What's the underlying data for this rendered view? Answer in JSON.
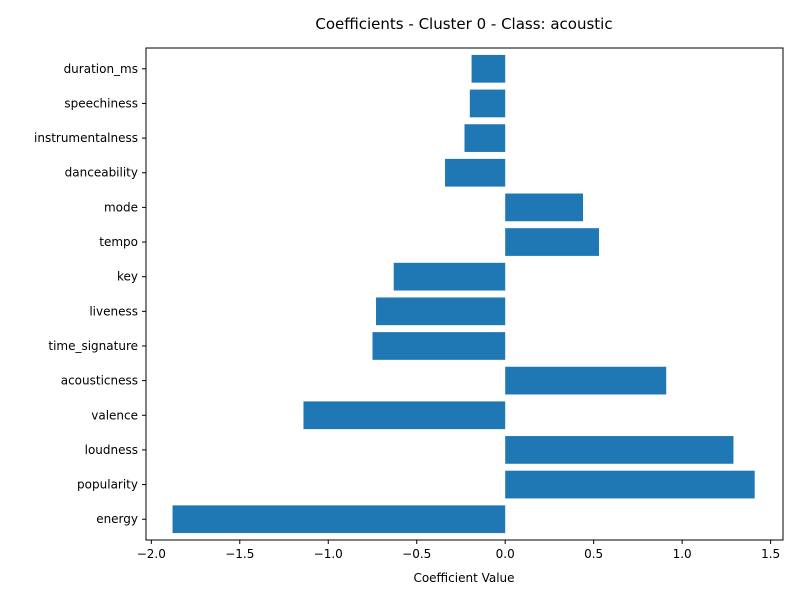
{
  "chart_data": {
    "type": "bar",
    "orientation": "horizontal",
    "title": "Coefficients - Cluster 0 - Class: acoustic",
    "xlabel": "Coefficient Value",
    "ylabel": "",
    "categories": [
      "energy",
      "popularity",
      "loudness",
      "valence",
      "acousticness",
      "time_signature",
      "liveness",
      "key",
      "tempo",
      "mode",
      "danceability",
      "instrumentalness",
      "speechiness",
      "duration_ms"
    ],
    "values": [
      -1.88,
      1.41,
      1.29,
      -1.14,
      0.91,
      -0.75,
      -0.73,
      -0.63,
      0.53,
      0.44,
      -0.34,
      -0.23,
      -0.2,
      -0.19
    ],
    "xlim": [
      -2.03,
      1.57
    ],
    "xticks": [
      -2.0,
      -1.5,
      -1.0,
      -0.5,
      0.0,
      0.5,
      1.0,
      1.5
    ],
    "xtick_labels": [
      "−2.0",
      "−1.5",
      "−1.0",
      "−0.5",
      "0.0",
      "0.5",
      "1.0",
      "1.5"
    ],
    "grid": false,
    "bar_color": "#1f77b4"
  }
}
